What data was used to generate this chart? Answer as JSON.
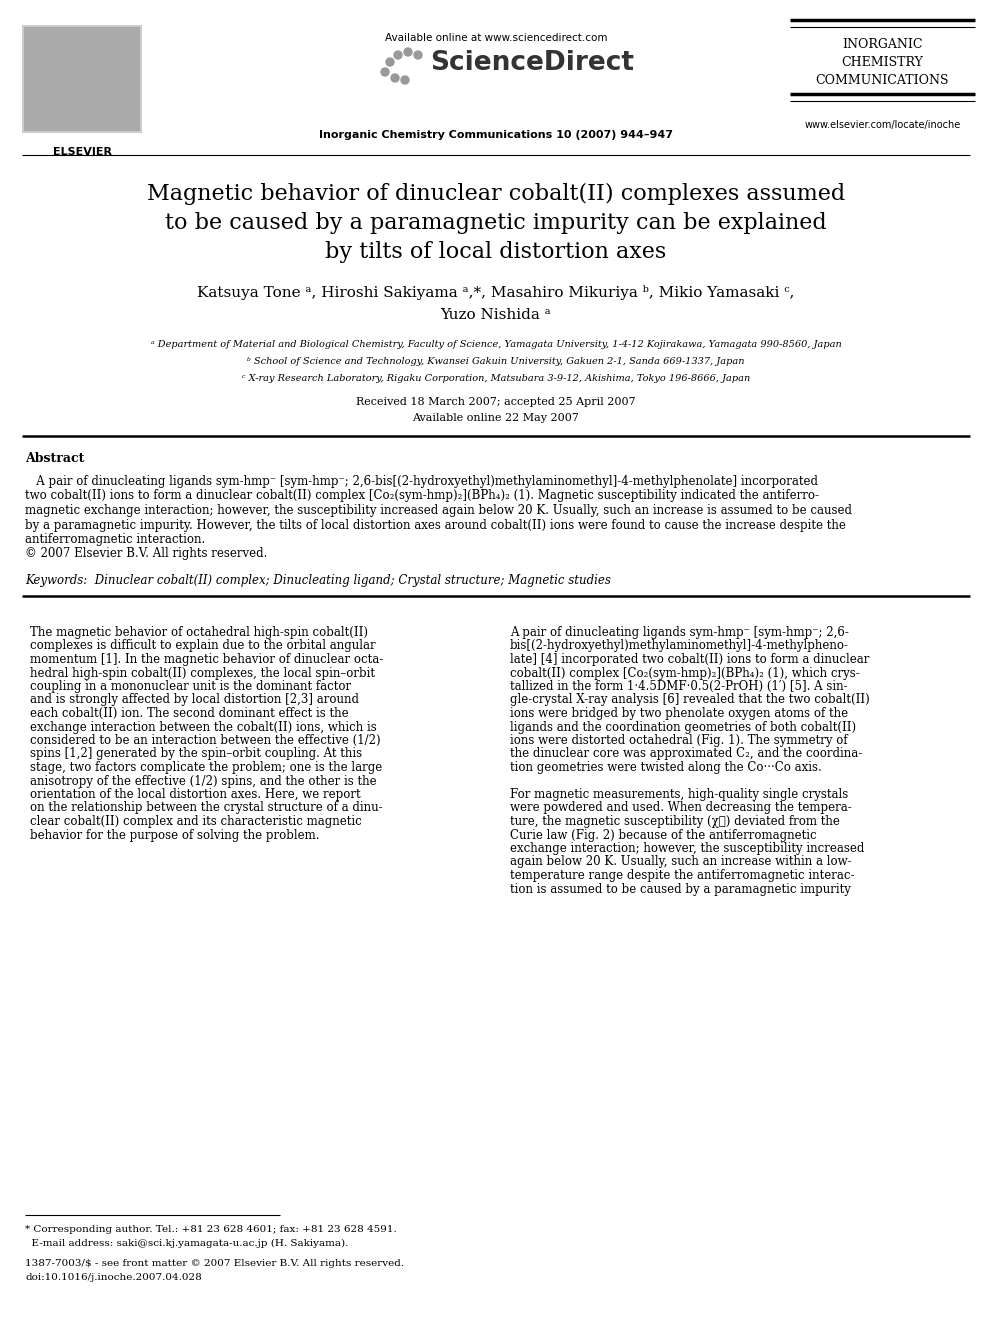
{
  "bg_color": "#ffffff",
  "title_line1": "Magnetic behavior of dinuclear cobalt(II) complexes assumed",
  "title_line2": "to be caused by a paramagnetic impurity can be explained",
  "title_line3": "by tilts of local distortion axes",
  "authors_line1": "Katsuya Tone ᵃ, Hiroshi Sakiyama ᵃ,*, Masahiro Mikuriya ᵇ, Mikio Yamasaki ᶜ,",
  "authors_line2": "Yuzo Nishida ᵃ",
  "affil_a": "ᵃ Department of Material and Biological Chemistry, Faculty of Science, Yamagata University, 1-4-12 Kojirakawa, Yamagata 990-8560, Japan",
  "affil_b": "ᵇ School of Science and Technology, Kwansei Gakuin University, Gakuen 2-1, Sanda 669-1337, Japan",
  "affil_c": "ᶜ X-ray Research Laboratory, Rigaku Corporation, Matsubara 3-9-12, Akishima, Tokyo 196-8666, Japan",
  "received": "Received 18 March 2007; accepted 25 April 2007",
  "available": "Available online 22 May 2007",
  "journal_header": "Inorganic Chemistry Communications 10 (2007) 944–947",
  "available_online": "Available online at www.sciencedirect.com",
  "elsevier_text": "ELSEVIER",
  "journal_name_line1": "INORGANIC",
  "journal_name_line2": "CHEMISTRY",
  "journal_name_line3": "COMMUNICATIONS",
  "journal_url": "www.elsevier.com/locate/inoche",
  "abstract_title": "Abstract",
  "keywords": "Keywords:  Dinuclear cobalt(II) complex; Dinucleating ligand; Crystal structure; Magnetic studies",
  "abstract_lines": [
    "   A pair of dinucleating ligands sym-hmp⁻ [sym-hmp⁻; 2,6-bis[(2-hydroxyethyl)methylaminomethyl]-4-methylphenolate] incorporated",
    "two cobalt(II) ions to form a dinuclear cobalt(II) complex [Co₂(sym-hmp)₂](BPh₄)₂ (1). Magnetic susceptibility indicated the antiferro-",
    "magnetic exchange interaction; however, the susceptibility increased again below 20 K. Usually, such an increase is assumed to be caused",
    "by a paramagnetic impurity. However, the tilts of local distortion axes around cobalt(II) ions were found to cause the increase despite the",
    "antiferromagnetic interaction.",
    "© 2007 Elsevier B.V. All rights reserved."
  ],
  "col1_lines": [
    "The magnetic behavior of octahedral high-spin cobalt(II)",
    "complexes is difficult to explain due to the orbital angular",
    "momentum [1]. In the magnetic behavior of dinuclear octa-",
    "hedral high-spin cobalt(II) complexes, the local spin–orbit",
    "coupling in a mononuclear unit is the dominant factor",
    "and is strongly affected by local distortion [2,3] around",
    "each cobalt(II) ion. The second dominant effect is the",
    "exchange interaction between the cobalt(II) ions, which is",
    "considered to be an interaction between the effective (1/2)",
    "spins [1,2] generated by the spin–orbit coupling. At this",
    "stage, two factors complicate the problem; one is the large",
    "anisotropy of the effective (1/2) spins, and the other is the",
    "orientation of the local distortion axes. Here, we report",
    "on the relationship between the crystal structure of a dinu-",
    "clear cobalt(II) complex and its characteristic magnetic",
    "behavior for the purpose of solving the problem."
  ],
  "col2_lines": [
    "A pair of dinucleating ligands sym-hmp⁻ [sym-hmp⁻; 2,6-",
    "bis[(2-hydroxyethyl)methylaminomethyl]-4-methylpheno-",
    "late] [4] incorporated two cobalt(II) ions to form a dinuclear",
    "cobalt(II) complex [Co₂(sym-hmp)₂](BPh₄)₂ (1), which crys-",
    "tallized in the form 1·4.5DMF·0.5(2-PrOH) (1′) [5]. A sin-",
    "gle-crystal X-ray analysis [6] revealed that the two cobalt(II)",
    "ions were bridged by two phenolate oxygen atoms of the",
    "ligands and the coordination geometries of both cobalt(II)",
    "ions were distorted octahedral (Fig. 1). The symmetry of",
    "the dinuclear core was approximated C₂, and the coordina-",
    "tion geometries were twisted along the Co···Co axis.",
    "",
    "For magnetic measurements, high-quality single crystals",
    "were powdered and used. When decreasing the tempera-",
    "ture, the magnetic susceptibility (χ⁁) deviated from the",
    "Curie law (Fig. 2) because of the antiferromagnetic",
    "exchange interaction; however, the susceptibility increased",
    "again below 20 K. Usually, such an increase within a low-",
    "temperature range despite the antiferromagnetic interac-",
    "tion is assumed to be caused by a paramagnetic impurity"
  ],
  "footnote_line1": "* Corresponding author. Tel.: +81 23 628 4601; fax: +81 23 628 4591.",
  "footnote_line2": "  E-mail address: saki@sci.kj.yamagata-u.ac.jp (H. Sakiyama).",
  "issn_line1": "1387-7003/$ - see front matter © 2007 Elsevier B.V. All rights reserved.",
  "issn_line2": "doi:10.1016/j.inoche.2007.04.028"
}
